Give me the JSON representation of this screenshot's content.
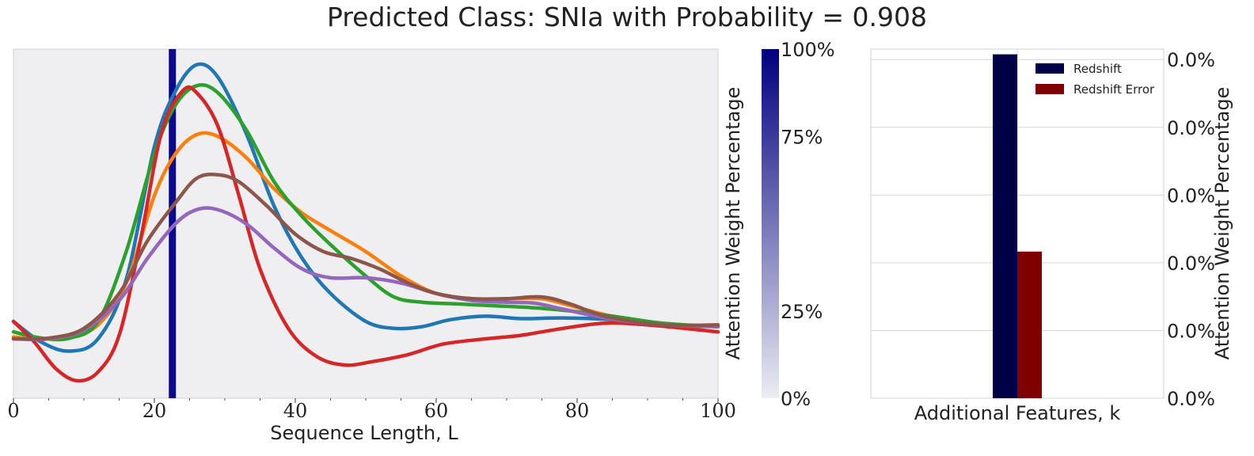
{
  "title": "Predicted Class: SNIa with Probability = 0.908",
  "chart_data": [
    {
      "type": "line",
      "xlabel": "Sequence Length, L",
      "xlim": [
        0,
        100
      ],
      "x_ticks": [
        "0",
        "20",
        "40",
        "60",
        "80",
        "100"
      ],
      "ylim": [
        0,
        1
      ],
      "grid": false,
      "background": "#efeff2",
      "attention_marker": {
        "x": 22.5,
        "weight_pct": 100,
        "color": "#0a0a8a"
      },
      "series": [
        {
          "color": "#1f77b4",
          "points": [
            [
              0,
              0.22
            ],
            [
              4,
              0.16
            ],
            [
              8,
              0.135
            ],
            [
              12,
              0.17
            ],
            [
              16,
              0.34
            ],
            [
              20,
              0.72
            ],
            [
              23,
              0.88
            ],
            [
              26,
              0.955
            ],
            [
              29,
              0.92
            ],
            [
              33,
              0.76
            ],
            [
              37,
              0.55
            ],
            [
              41,
              0.4
            ],
            [
              45,
              0.3
            ],
            [
              50,
              0.22
            ],
            [
              54,
              0.2
            ],
            [
              58,
              0.205
            ],
            [
              62,
              0.225
            ],
            [
              67,
              0.235
            ],
            [
              72,
              0.228
            ],
            [
              78,
              0.23
            ],
            [
              85,
              0.225
            ],
            [
              92,
              0.21
            ],
            [
              100,
              0.205
            ]
          ]
        },
        {
          "color": "#ff7f0e",
          "points": [
            [
              0,
              0.175
            ],
            [
              4,
              0.17
            ],
            [
              8,
              0.175
            ],
            [
              12,
              0.21
            ],
            [
              16,
              0.33
            ],
            [
              20,
              0.58
            ],
            [
              23,
              0.7
            ],
            [
              26,
              0.755
            ],
            [
              29,
              0.75
            ],
            [
              33,
              0.69
            ],
            [
              37,
              0.6
            ],
            [
              41,
              0.53
            ],
            [
              45,
              0.48
            ],
            [
              50,
              0.42
            ],
            [
              55,
              0.35
            ],
            [
              60,
              0.3
            ],
            [
              65,
              0.285
            ],
            [
              70,
              0.285
            ],
            [
              75,
              0.285
            ],
            [
              80,
              0.26
            ],
            [
              85,
              0.235
            ],
            [
              92,
              0.215
            ],
            [
              100,
              0.205
            ]
          ]
        },
        {
          "color": "#2ca02c",
          "points": [
            [
              0,
              0.19
            ],
            [
              4,
              0.172
            ],
            [
              8,
              0.172
            ],
            [
              12,
              0.22
            ],
            [
              16,
              0.42
            ],
            [
              20,
              0.7
            ],
            [
              23,
              0.84
            ],
            [
              26,
              0.895
            ],
            [
              29,
              0.875
            ],
            [
              33,
              0.77
            ],
            [
              37,
              0.62
            ],
            [
              41,
              0.52
            ],
            [
              45,
              0.44
            ],
            [
              50,
              0.35
            ],
            [
              54,
              0.29
            ],
            [
              58,
              0.275
            ],
            [
              63,
              0.27
            ],
            [
              68,
              0.265
            ],
            [
              73,
              0.26
            ],
            [
              78,
              0.252
            ],
            [
              85,
              0.235
            ],
            [
              92,
              0.215
            ],
            [
              100,
              0.205
            ]
          ]
        },
        {
          "color": "#d62728",
          "points": [
            [
              0,
              0.22
            ],
            [
              3,
              0.16
            ],
            [
              6,
              0.085
            ],
            [
              9,
              0.05
            ],
            [
              12,
              0.075
            ],
            [
              15,
              0.18
            ],
            [
              18,
              0.45
            ],
            [
              21,
              0.76
            ],
            [
              24,
              0.88
            ],
            [
              26,
              0.875
            ],
            [
              29,
              0.78
            ],
            [
              32,
              0.58
            ],
            [
              35,
              0.37
            ],
            [
              39,
              0.2
            ],
            [
              43,
              0.12
            ],
            [
              47,
              0.095
            ],
            [
              51,
              0.105
            ],
            [
              56,
              0.125
            ],
            [
              61,
              0.155
            ],
            [
              67,
              0.17
            ],
            [
              72,
              0.18
            ],
            [
              78,
              0.2
            ],
            [
              84,
              0.215
            ],
            [
              90,
              0.21
            ],
            [
              100,
              0.19
            ]
          ]
        },
        {
          "color": "#9467bd",
          "points": [
            [
              0,
              0.17
            ],
            [
              5,
              0.17
            ],
            [
              10,
              0.195
            ],
            [
              15,
              0.28
            ],
            [
              19,
              0.4
            ],
            [
              23,
              0.5
            ],
            [
              26,
              0.54
            ],
            [
              29,
              0.54
            ],
            [
              33,
              0.5
            ],
            [
              37,
              0.43
            ],
            [
              41,
              0.37
            ],
            [
              45,
              0.345
            ],
            [
              50,
              0.345
            ],
            [
              55,
              0.33
            ],
            [
              60,
              0.3
            ],
            [
              65,
              0.28
            ],
            [
              70,
              0.275
            ],
            [
              74,
              0.272
            ],
            [
              78,
              0.255
            ],
            [
              84,
              0.23
            ],
            [
              92,
              0.21
            ],
            [
              100,
              0.205
            ]
          ]
        },
        {
          "color": "#8c564b",
          "points": [
            [
              0,
              0.17
            ],
            [
              5,
              0.172
            ],
            [
              10,
              0.2
            ],
            [
              15,
              0.3
            ],
            [
              19,
              0.45
            ],
            [
              23,
              0.56
            ],
            [
              26,
              0.63
            ],
            [
              29,
              0.64
            ],
            [
              32,
              0.62
            ],
            [
              36,
              0.55
            ],
            [
              40,
              0.47
            ],
            [
              44,
              0.42
            ],
            [
              48,
              0.4
            ],
            [
              52,
              0.37
            ],
            [
              56,
              0.33
            ],
            [
              60,
              0.3
            ],
            [
              65,
              0.285
            ],
            [
              70,
              0.285
            ],
            [
              75,
              0.29
            ],
            [
              79,
              0.27
            ],
            [
              84,
              0.235
            ],
            [
              92,
              0.21
            ],
            [
              100,
              0.21
            ]
          ]
        }
      ]
    },
    {
      "type": "colorbar",
      "ylabel": "Attention Weight Percentage",
      "tick_labels": [
        "0%",
        "25%",
        "75%",
        "100%"
      ],
      "tick_values": [
        0,
        25,
        75,
        100
      ],
      "colors": [
        "#ececf2",
        "#000080"
      ]
    },
    {
      "type": "bar",
      "xlabel": "Additional Features, k",
      "ylabel": "Attention Weight Percentage",
      "y_tick_labels": [
        "0.0%",
        "0.0%",
        "0.0%",
        "0.0%",
        "0.0%",
        "0.0%"
      ],
      "ylim": [
        0,
        1
      ],
      "grid": true,
      "legend_position": "top-right",
      "series": [
        {
          "name": "Redshift",
          "value": 0.985,
          "color": "#000046"
        },
        {
          "name": "Redshift Error",
          "value": 0.42,
          "color": "#800000"
        }
      ]
    }
  ]
}
